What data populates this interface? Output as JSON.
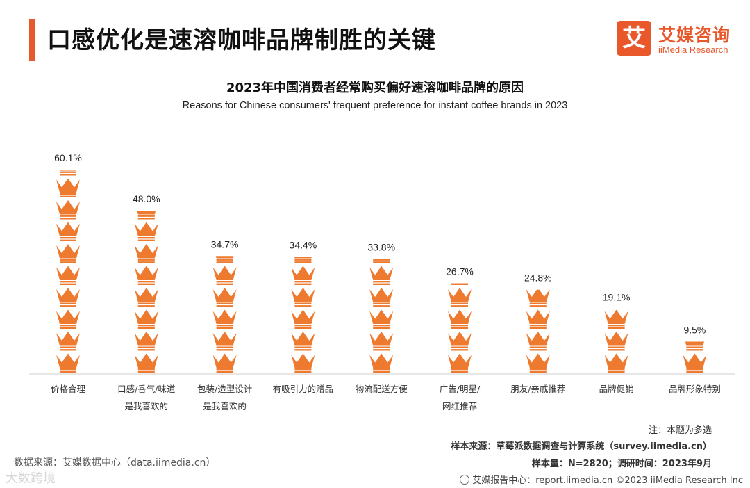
{
  "header": {
    "title": "口感优化是速溶咖啡品牌制胜的关键",
    "logo_mark": "艾",
    "logo_cn": "艾媒咨询",
    "logo_en": "iiMedia Research"
  },
  "chart_data": {
    "type": "bar",
    "title": "2023年中国消费者经常购买偏好速溶咖啡品牌的原因",
    "subtitle": "Reasons for Chinese consumers' frequent preference for instant coffee brands in 2023",
    "unit": "%",
    "categories": [
      [
        "价格合理"
      ],
      [
        "口感/香气/味道",
        "是我喜欢的"
      ],
      [
        "包装/造型设计",
        "是我喜欢的"
      ],
      [
        "有吸引力的赠品"
      ],
      [
        "物流配送方便"
      ],
      [
        "广告/明星/",
        "网红推荐"
      ],
      [
        "朋友/亲戚推荐"
      ],
      [
        "品牌促销"
      ],
      [
        "品牌形象特别"
      ]
    ],
    "values": [
      60.1,
      48.0,
      34.7,
      34.4,
      33.8,
      26.7,
      24.8,
      19.1,
      9.5
    ],
    "value_labels": [
      "60.1%",
      "48.0%",
      "34.7%",
      "34.4%",
      "33.8%",
      "26.7%",
      "24.8%",
      "19.1%",
      "9.5%"
    ],
    "ylim": [
      0,
      60.1
    ],
    "icon": "crown-icon",
    "color": "#ee7a2f"
  },
  "notes": {
    "multi_choice": "注：本题为多选",
    "sample_source": "样本来源：草莓派数据调查与计算系统（survey.iimedia.cn）",
    "sample_size": "样本量：N=2820；调研时间：2023年9月",
    "data_source": "数据来源：艾媒数据中心（data.iimedia.cn）",
    "watermark": "大数跨境",
    "footer": "艾媒报告中心：report.iimedia.cn  ©2023  iiMedia Research  Inc"
  }
}
